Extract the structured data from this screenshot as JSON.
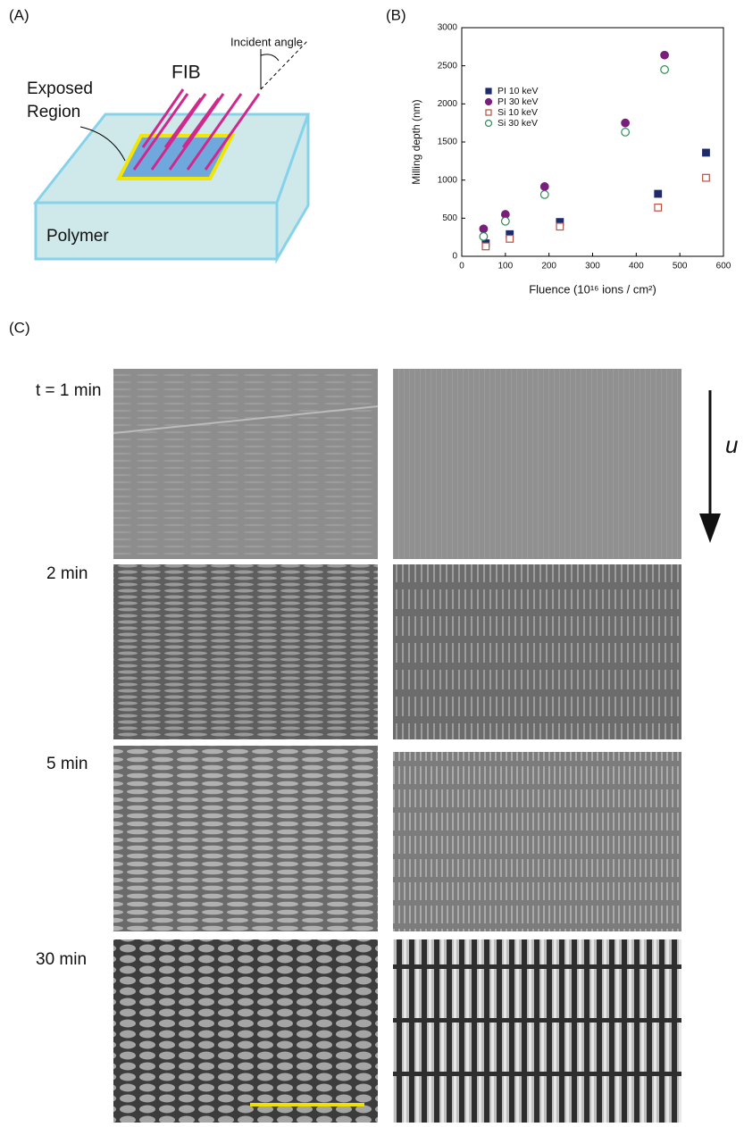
{
  "panel_a": {
    "label": "(A)",
    "fib": "FIB",
    "exposed_region": [
      "Exposed",
      "Region"
    ],
    "incident_angle": "Incident angle",
    "polymer": "Polymer"
  },
  "panel_b_label": "(B)",
  "chart_data": {
    "type": "scatter",
    "xlabel": "Fluence (10¹⁶ ions / cm²)",
    "ylabel": "Milling depth (nm)",
    "xlim": [
      0,
      600
    ],
    "ylim": [
      0,
      3000
    ],
    "xticks": [
      0,
      100,
      200,
      300,
      400,
      500,
      600
    ],
    "yticks": [
      0,
      500,
      1000,
      1500,
      2000,
      2500,
      3000
    ],
    "grid": false,
    "legend": "upper left",
    "series": [
      {
        "name": "PI 10 keV",
        "color": "#1f2a6b",
        "marker": "square",
        "filled": true,
        "x": [
          55,
          110,
          225,
          450,
          560
        ],
        "values": [
          170,
          290,
          450,
          820,
          1360
        ]
      },
      {
        "name": "PI 30 keV",
        "color": "#7a1e7e",
        "marker": "circle",
        "filled": true,
        "x": [
          50,
          100,
          190,
          375,
          465
        ],
        "values": [
          360,
          550,
          915,
          1750,
          2640
        ]
      },
      {
        "name": "Si 10 keV",
        "color": "#b5523f",
        "marker": "square",
        "filled": false,
        "x": [
          55,
          110,
          225,
          450,
          560
        ],
        "values": [
          130,
          230,
          390,
          640,
          1030
        ]
      },
      {
        "name": "Si 30 keV",
        "color": "#2e8b57",
        "marker": "circle",
        "filled": false,
        "x": [
          50,
          100,
          190,
          375,
          465
        ],
        "values": [
          260,
          460,
          810,
          1630,
          2450
        ]
      }
    ]
  },
  "panel_c": {
    "label": "(C)",
    "times": [
      "t = 1 min",
      "2 min",
      "5 min",
      "30 min"
    ],
    "flow_label": "u"
  }
}
